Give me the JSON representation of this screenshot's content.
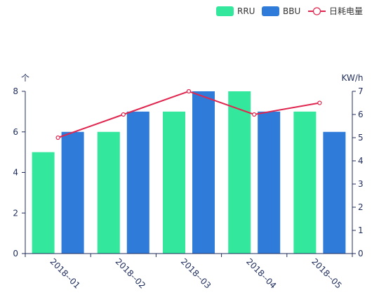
{
  "chart_data": {
    "type": "bar",
    "categories": [
      "2018--01",
      "2018--02",
      "2018--03",
      "2018--04",
      "2018--05"
    ],
    "series": [
      {
        "name": "RRU",
        "type": "bar",
        "axis": "left",
        "values": [
          5,
          6,
          7,
          8,
          7
        ],
        "color": "#33e89c"
      },
      {
        "name": "BBU",
        "type": "bar",
        "axis": "left",
        "values": [
          6,
          7,
          8,
          7,
          6
        ],
        "color": "#2f7bda"
      },
      {
        "name": "日耗电量",
        "type": "line",
        "axis": "right",
        "values": [
          5,
          6,
          7,
          6,
          6.5
        ],
        "color": "#e0264f"
      }
    ],
    "y_left": {
      "label": "个",
      "ylim": [
        0,
        8
      ],
      "ticks": [
        0,
        2,
        4,
        6,
        8
      ]
    },
    "y_right": {
      "label": "KW/h",
      "ylim": [
        0,
        7
      ],
      "ticks": [
        0,
        1,
        2,
        3,
        4,
        5,
        6,
        7
      ]
    },
    "legend_position": "top-right",
    "grid": false,
    "axis_color": "#1f2d5c"
  }
}
